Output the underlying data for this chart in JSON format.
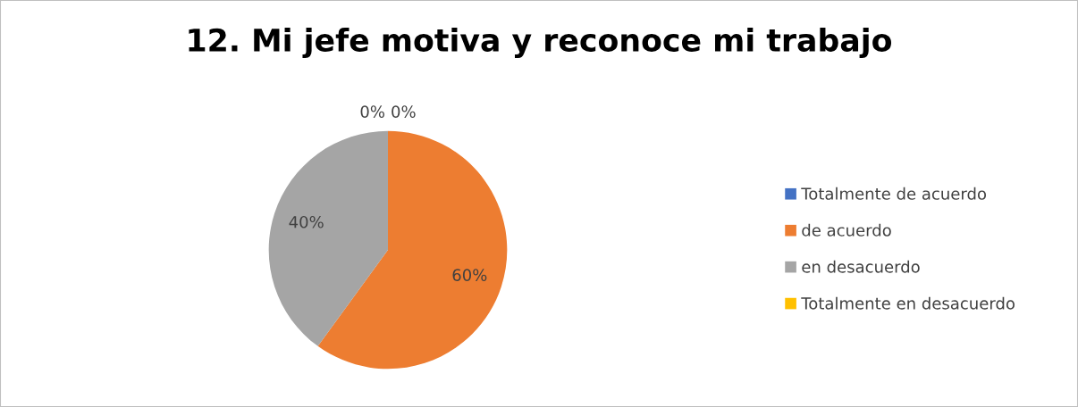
{
  "chart_data": {
    "type": "pie",
    "title": "12. Mi jefe motiva y reconoce mi trabajo",
    "categories": [
      "Totalmente de acuerdo",
      "de acuerdo",
      "en desacuerdo",
      "Totalmente en desacuerdo"
    ],
    "values": [
      0,
      60,
      40,
      0
    ],
    "colors": [
      "#4472c4",
      "#ed7d31",
      "#a5a5a5",
      "#ffc000"
    ],
    "value_labels": [
      "0%",
      "60%",
      "40%",
      "0%"
    ],
    "legend": "right"
  }
}
